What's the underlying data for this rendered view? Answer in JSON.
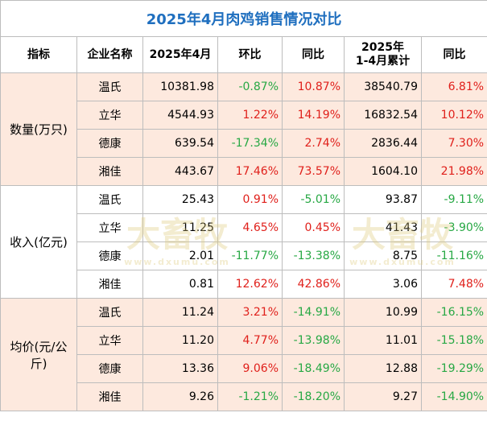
{
  "table": {
    "title": "2025年4月肉鸡销售情况对比",
    "headers": [
      "指标",
      "企业名称",
      "2025年4月",
      "环比",
      "同比",
      "2025年\n1-4月累计",
      "同比"
    ],
    "groups": [
      {
        "label": "数量(万只)",
        "rows": [
          [
            "温氏",
            "10381.98",
            "-0.87%",
            "10.87%",
            "38540.79",
            "6.81%"
          ],
          [
            "立华",
            "4544.93",
            "1.22%",
            "14.19%",
            "16832.54",
            "10.12%"
          ],
          [
            "德康",
            "639.54",
            "-17.34%",
            "2.74%",
            "2836.44",
            "7.30%"
          ],
          [
            "湘佳",
            "443.67",
            "17.46%",
            "73.57%",
            "1604.10",
            "21.98%"
          ]
        ]
      },
      {
        "label": "收入(亿元)",
        "rows": [
          [
            "温氏",
            "25.43",
            "0.91%",
            "-5.01%",
            "93.87",
            "-9.11%"
          ],
          [
            "立华",
            "11.25",
            "4.65%",
            "0.45%",
            "41.43",
            "-3.90%"
          ],
          [
            "德康",
            "2.01",
            "-11.77%",
            "-13.38%",
            "8.75",
            "-11.16%"
          ],
          [
            "湘佳",
            "0.81",
            "12.62%",
            "42.86%",
            "3.06",
            "7.48%"
          ]
        ]
      },
      {
        "label": "均价(元/公斤)",
        "rows": [
          [
            "温氏",
            "11.24",
            "3.21%",
            "-14.91%",
            "10.99",
            "-16.15%"
          ],
          [
            "立华",
            "11.20",
            "4.77%",
            "-13.98%",
            "11.01",
            "-15.18%"
          ],
          [
            "德康",
            "13.36",
            "9.06%",
            "-18.49%",
            "12.88",
            "-19.29%"
          ],
          [
            "湘佳",
            "9.26",
            "-1.21%",
            "-18.20%",
            "9.27",
            "-14.90%"
          ]
        ]
      }
    ],
    "watermark": {
      "brand": "大畜牧",
      "url": "www.dxumu.com"
    }
  }
}
